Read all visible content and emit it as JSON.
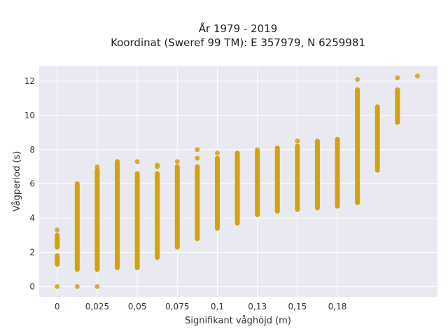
{
  "chart_data": {
    "type": "scatter",
    "title_line1": "År 1979 - 2019",
    "title_line2": "Koordinat (Sweref 99 TM): E 357979, N 6259981",
    "xlabel": "Signifikant våghöjd (m)",
    "ylabel": "Vågperiod (s)",
    "xlim": [
      -0.009,
      0.19
    ],
    "ylim": [
      -0.6,
      12.9
    ],
    "x_ticks": [
      {
        "value": 0,
        "label": "0"
      },
      {
        "value": 0.02,
        "label": "0,025"
      },
      {
        "value": 0.04,
        "label": "0,05"
      },
      {
        "value": 0.06,
        "label": "0,075"
      },
      {
        "value": 0.08,
        "label": "0,1"
      },
      {
        "value": 0.1,
        "label": "0,13"
      },
      {
        "value": 0.12,
        "label": "0,15"
      },
      {
        "value": 0.14,
        "label": "0,18"
      }
    ],
    "y_ticks": [
      0,
      2,
      4,
      6,
      8,
      10,
      12
    ],
    "grid": true,
    "marker_color": "#D4A20D",
    "columns": [
      {
        "x": 0.0,
        "segments": [
          [
            1.3,
            1.8
          ],
          [
            2.3,
            3.0
          ]
        ],
        "points": [
          3.3,
          0.0
        ]
      },
      {
        "x": 0.01,
        "segments": [
          [
            1.0,
            6.0
          ]
        ],
        "points": [
          0.0
        ]
      },
      {
        "x": 0.02,
        "segments": [
          [
            1.0,
            6.8
          ]
        ],
        "points": [
          7.0,
          0.0
        ]
      },
      {
        "x": 0.03,
        "segments": [
          [
            1.1,
            7.3
          ]
        ],
        "points": []
      },
      {
        "x": 0.04,
        "segments": [
          [
            1.1,
            6.6
          ]
        ],
        "points": [
          7.3
        ]
      },
      {
        "x": 0.05,
        "segments": [
          [
            1.7,
            6.6
          ]
        ],
        "points": [
          7.0,
          7.1
        ]
      },
      {
        "x": 0.06,
        "segments": [
          [
            2.3,
            7.0
          ]
        ],
        "points": [
          7.3
        ]
      },
      {
        "x": 0.07,
        "segments": [
          [
            2.8,
            7.0
          ]
        ],
        "points": [
          7.5,
          8.0
        ]
      },
      {
        "x": 0.08,
        "segments": [
          [
            3.4,
            7.5
          ]
        ],
        "points": [
          7.8
        ]
      },
      {
        "x": 0.09,
        "segments": [
          [
            3.7,
            7.8
          ]
        ],
        "points": []
      },
      {
        "x": 0.1,
        "segments": [
          [
            4.2,
            7.9
          ]
        ],
        "points": [
          8.0
        ]
      },
      {
        "x": 0.11,
        "segments": [
          [
            4.4,
            8.1
          ]
        ],
        "points": []
      },
      {
        "x": 0.12,
        "segments": [
          [
            4.5,
            8.2
          ]
        ],
        "points": [
          8.5
        ]
      },
      {
        "x": 0.13,
        "segments": [
          [
            4.6,
            8.5
          ]
        ],
        "points": []
      },
      {
        "x": 0.14,
        "segments": [
          [
            4.7,
            8.6
          ]
        ],
        "points": []
      },
      {
        "x": 0.15,
        "segments": [
          [
            4.9,
            11.5
          ]
        ],
        "points": [
          12.1
        ]
      },
      {
        "x": 0.16,
        "segments": [
          [
            6.8,
            10.5
          ]
        ],
        "points": []
      },
      {
        "x": 0.17,
        "segments": [
          [
            9.6,
            11.5
          ]
        ],
        "points": [
          12.2
        ]
      },
      {
        "x": 0.18,
        "segments": [],
        "points": [
          12.3
        ]
      }
    ]
  }
}
